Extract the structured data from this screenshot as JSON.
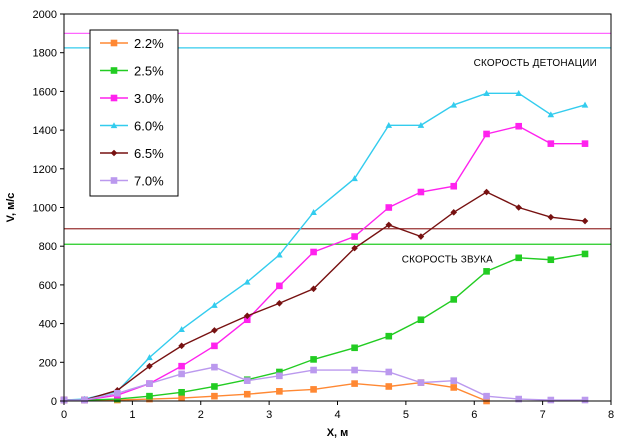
{
  "chart_data": {
    "type": "line",
    "xlabel": "X, м",
    "ylabel": "V, м/с",
    "xlim": [
      0,
      8
    ],
    "ylim": [
      0,
      2000
    ],
    "xticks": [
      "0",
      "1",
      "2",
      "3",
      "4",
      "5",
      "6",
      "7",
      "8"
    ],
    "yticks": [
      "0",
      "200",
      "400",
      "600",
      "800",
      "1000",
      "1200",
      "1400",
      "1600",
      "1800",
      "2000"
    ],
    "grid": false,
    "legend_position": "top-left",
    "reference_lines": [
      {
        "label": "",
        "y": 1900,
        "color": "#ff66ff"
      },
      {
        "label": "СКОРОСТЬ ДЕТОНАЦИИ",
        "y": 1825,
        "color": "#33ccee"
      },
      {
        "label": "",
        "y": 890,
        "color": "#993333"
      },
      {
        "label": "СКОРОСТЬ ЗВУКА",
        "y": 810,
        "color": "#22cc22"
      }
    ],
    "series": [
      {
        "name": "2.2%",
        "color": "#ff8833",
        "marker": "square",
        "x": [
          0,
          0.3,
          0.78,
          1.25,
          1.72,
          2.2,
          2.68,
          3.15,
          3.65,
          4.25,
          4.75,
          5.22,
          5.7,
          6.18
        ],
        "y": [
          5,
          5,
          5,
          10,
          15,
          25,
          35,
          50,
          60,
          90,
          75,
          95,
          70,
          0
        ]
      },
      {
        "name": "2.5%",
        "color": "#22cc22",
        "marker": "square",
        "x": [
          0,
          0.3,
          0.78,
          1.25,
          1.72,
          2.2,
          2.68,
          3.15,
          3.65,
          4.25,
          4.75,
          5.22,
          5.7,
          6.18,
          6.65,
          7.12,
          7.62
        ],
        "y": [
          5,
          5,
          10,
          25,
          45,
          75,
          110,
          150,
          215,
          275,
          335,
          420,
          525,
          670,
          740,
          730,
          760
        ]
      },
      {
        "name": "3.0%",
        "color": "#ff22ee",
        "marker": "square",
        "x": [
          0,
          0.3,
          0.78,
          1.25,
          1.72,
          2.2,
          2.68,
          3.15,
          3.65,
          4.25,
          4.75,
          5.22,
          5.7,
          6.18,
          6.65,
          7.12,
          7.62
        ],
        "y": [
          5,
          5,
          30,
          90,
          180,
          285,
          420,
          595,
          770,
          850,
          1000,
          1080,
          1110,
          1380,
          1420,
          1330,
          1330
        ]
      },
      {
        "name": "6.0%",
        "color": "#33ccee",
        "marker": "triangle",
        "x": [
          0,
          0.3,
          0.78,
          1.25,
          1.72,
          2.2,
          2.68,
          3.15,
          3.65,
          4.25,
          4.75,
          5.22,
          5.7,
          6.18,
          6.65,
          7.12,
          7.62
        ],
        "y": [
          5,
          10,
          50,
          225,
          370,
          495,
          615,
          755,
          975,
          1150,
          1425,
          1425,
          1530,
          1590,
          1590,
          1480,
          1530
        ]
      },
      {
        "name": "6.5%",
        "color": "#771111",
        "marker": "diamond",
        "x": [
          0,
          0.3,
          0.78,
          1.25,
          1.72,
          2.2,
          2.68,
          3.15,
          3.65,
          4.25,
          4.75,
          5.22,
          5.7,
          6.18,
          6.65,
          7.12,
          7.62
        ],
        "y": [
          5,
          5,
          55,
          180,
          285,
          365,
          440,
          505,
          580,
          790,
          910,
          850,
          975,
          1080,
          1000,
          950,
          930
        ]
      },
      {
        "name": "7.0%",
        "color": "#bb99ee",
        "marker": "square",
        "x": [
          0,
          0.3,
          0.78,
          1.25,
          1.72,
          2.2,
          2.68,
          3.15,
          3.65,
          4.25,
          4.75,
          5.22,
          5.7,
          6.18,
          6.65,
          7.12,
          7.62
        ],
        "y": [
          5,
          5,
          40,
          90,
          140,
          175,
          105,
          130,
          160,
          160,
          150,
          95,
          105,
          25,
          10,
          5,
          5
        ]
      }
    ]
  }
}
